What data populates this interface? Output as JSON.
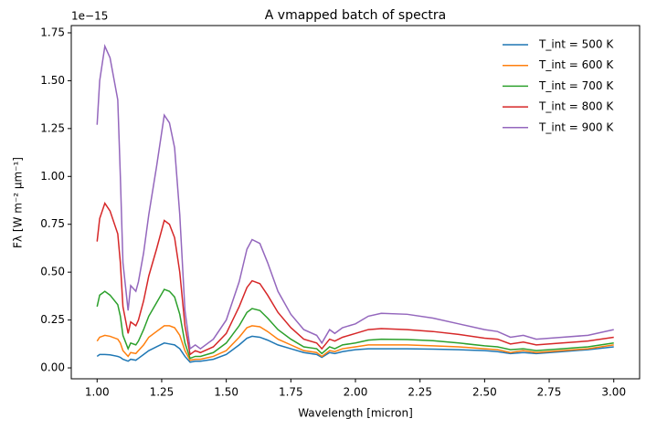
{
  "chart_data": {
    "type": "line",
    "title": "A vmapped batch of spectra",
    "x_label": "Wavelength [micron]",
    "y_label": "Fλ [W m⁻² μm⁻¹]",
    "y_offset_label": "1e−15",
    "x": [
      1.0,
      1.01,
      1.03,
      1.05,
      1.08,
      1.09,
      1.1,
      1.12,
      1.13,
      1.15,
      1.16,
      1.18,
      1.2,
      1.23,
      1.26,
      1.28,
      1.3,
      1.32,
      1.34,
      1.36,
      1.38,
      1.4,
      1.45,
      1.5,
      1.55,
      1.58,
      1.6,
      1.63,
      1.66,
      1.7,
      1.75,
      1.8,
      1.85,
      1.87,
      1.9,
      1.92,
      1.95,
      2.0,
      2.05,
      2.1,
      2.2,
      2.3,
      2.4,
      2.5,
      2.55,
      2.6,
      2.65,
      2.7,
      2.8,
      2.9,
      3.0
    ],
    "series": [
      {
        "name": "T_int = 500 K",
        "color": "#1f77b4",
        "values": [
          0.06,
          0.07,
          0.07,
          0.068,
          0.06,
          0.055,
          0.045,
          0.035,
          0.045,
          0.04,
          0.05,
          0.07,
          0.09,
          0.11,
          0.13,
          0.125,
          0.12,
          0.1,
          0.06,
          0.03,
          0.035,
          0.035,
          0.045,
          0.07,
          0.12,
          0.155,
          0.165,
          0.16,
          0.145,
          0.12,
          0.1,
          0.08,
          0.07,
          0.055,
          0.08,
          0.075,
          0.085,
          0.095,
          0.1,
          0.1,
          0.1,
          0.098,
          0.095,
          0.09,
          0.085,
          0.075,
          0.08,
          0.075,
          0.085,
          0.095,
          0.11
        ]
      },
      {
        "name": "T_int = 600 K",
        "color": "#ff7f0e",
        "values": [
          0.14,
          0.16,
          0.17,
          0.165,
          0.15,
          0.13,
          0.09,
          0.06,
          0.08,
          0.075,
          0.09,
          0.12,
          0.16,
          0.19,
          0.22,
          0.22,
          0.21,
          0.17,
          0.09,
          0.04,
          0.045,
          0.045,
          0.06,
          0.09,
          0.16,
          0.21,
          0.22,
          0.215,
          0.19,
          0.15,
          0.12,
          0.09,
          0.08,
          0.06,
          0.09,
          0.085,
          0.1,
          0.11,
          0.12,
          0.12,
          0.12,
          0.115,
          0.11,
          0.1,
          0.095,
          0.08,
          0.09,
          0.08,
          0.09,
          0.1,
          0.12
        ]
      },
      {
        "name": "T_int = 700 K",
        "color": "#2ca02c",
        "values": [
          0.32,
          0.38,
          0.4,
          0.38,
          0.33,
          0.27,
          0.17,
          0.1,
          0.13,
          0.12,
          0.14,
          0.2,
          0.27,
          0.34,
          0.41,
          0.4,
          0.37,
          0.28,
          0.13,
          0.05,
          0.06,
          0.06,
          0.08,
          0.13,
          0.22,
          0.29,
          0.31,
          0.3,
          0.26,
          0.2,
          0.15,
          0.11,
          0.1,
          0.075,
          0.11,
          0.1,
          0.12,
          0.13,
          0.145,
          0.15,
          0.148,
          0.142,
          0.13,
          0.115,
          0.11,
          0.095,
          0.1,
          0.09,
          0.1,
          0.11,
          0.13
        ]
      },
      {
        "name": "T_int = 800 K",
        "color": "#d62728",
        "values": [
          0.66,
          0.78,
          0.86,
          0.82,
          0.7,
          0.55,
          0.32,
          0.18,
          0.24,
          0.22,
          0.25,
          0.35,
          0.48,
          0.62,
          0.77,
          0.75,
          0.68,
          0.5,
          0.22,
          0.07,
          0.09,
          0.08,
          0.11,
          0.18,
          0.32,
          0.42,
          0.455,
          0.44,
          0.38,
          0.29,
          0.21,
          0.15,
          0.13,
          0.1,
          0.15,
          0.14,
          0.16,
          0.18,
          0.2,
          0.205,
          0.2,
          0.19,
          0.175,
          0.155,
          0.15,
          0.125,
          0.135,
          0.12,
          0.13,
          0.14,
          0.16
        ]
      },
      {
        "name": "T_int = 900 K",
        "color": "#9467bd",
        "values": [
          1.27,
          1.5,
          1.68,
          1.62,
          1.4,
          1.0,
          0.55,
          0.3,
          0.43,
          0.4,
          0.45,
          0.6,
          0.8,
          1.05,
          1.32,
          1.28,
          1.15,
          0.8,
          0.3,
          0.1,
          0.12,
          0.1,
          0.15,
          0.25,
          0.45,
          0.62,
          0.67,
          0.65,
          0.55,
          0.4,
          0.28,
          0.2,
          0.17,
          0.13,
          0.2,
          0.18,
          0.21,
          0.23,
          0.27,
          0.285,
          0.28,
          0.26,
          0.23,
          0.2,
          0.19,
          0.16,
          0.17,
          0.15,
          0.16,
          0.17,
          0.2
        ]
      }
    ],
    "xlim": [
      0.9,
      3.1
    ],
    "xticks": [
      {
        "value": 1.0,
        "label": "1.00"
      },
      {
        "value": 1.25,
        "label": "1.25"
      },
      {
        "value": 1.5,
        "label": "1.50"
      },
      {
        "value": 1.75,
        "label": "1.75"
      },
      {
        "value": 2.0,
        "label": "2.00"
      },
      {
        "value": 2.25,
        "label": "2.25"
      },
      {
        "value": 2.5,
        "label": "2.50"
      },
      {
        "value": 2.75,
        "label": "2.75"
      },
      {
        "value": 3.0,
        "label": "3.00"
      }
    ],
    "ylim": [
      -0.057,
      1.788
    ],
    "yticks": [
      {
        "value": 0,
        "label": "0.00"
      },
      {
        "value": 0.25,
        "label": "0.25"
      },
      {
        "value": 0.5,
        "label": "0.50"
      },
      {
        "value": 0.75,
        "label": "0.75"
      },
      {
        "value": 1.0,
        "label": "1.00"
      },
      {
        "value": 1.25,
        "label": "1.25"
      },
      {
        "value": 1.5,
        "label": "1.50"
      },
      {
        "value": 1.75,
        "label": "1.75"
      }
    ],
    "grid": false,
    "legend": "upper-right"
  }
}
